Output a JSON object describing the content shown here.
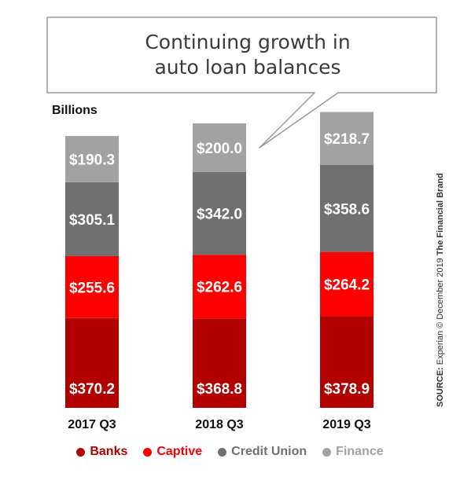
{
  "colors": {
    "Banks": "#b20000",
    "Captive": "#ff0000",
    "Credit Union": "#707070",
    "Finance": "#a2a2a2"
  },
  "callout": {
    "line1": "Continuing growth in",
    "line2": "auto loan balances"
  },
  "unit_label": "Billions",
  "side_note": {
    "prefix": "SOURCE:",
    "text": " Experian © December 2019  ",
    "brand": "The Financial Brand"
  },
  "chart_data": {
    "type": "bar",
    "stacked": true,
    "categories": [
      "2017 Q3",
      "2018 Q3",
      "2019 Q3"
    ],
    "series": [
      {
        "name": "Banks",
        "values": [
          370.2,
          368.8,
          378.9
        ],
        "labels": [
          "$370.2",
          "$368.8",
          "$378.9"
        ]
      },
      {
        "name": "Captive",
        "values": [
          255.6,
          262.6,
          264.2
        ],
        "labels": [
          "$255.6",
          "$262.6",
          "$264.2"
        ]
      },
      {
        "name": "Credit Union",
        "values": [
          305.1,
          342.0,
          358.6
        ],
        "labels": [
          "$305.1",
          "$342.0",
          "$358.6"
        ]
      },
      {
        "name": "Finance",
        "values": [
          190.3,
          200.0,
          218.7
        ],
        "labels": [
          "$190.3",
          "$200.0",
          "$218.7"
        ]
      }
    ],
    "ylabel": "Billions",
    "legend": "bottom"
  }
}
